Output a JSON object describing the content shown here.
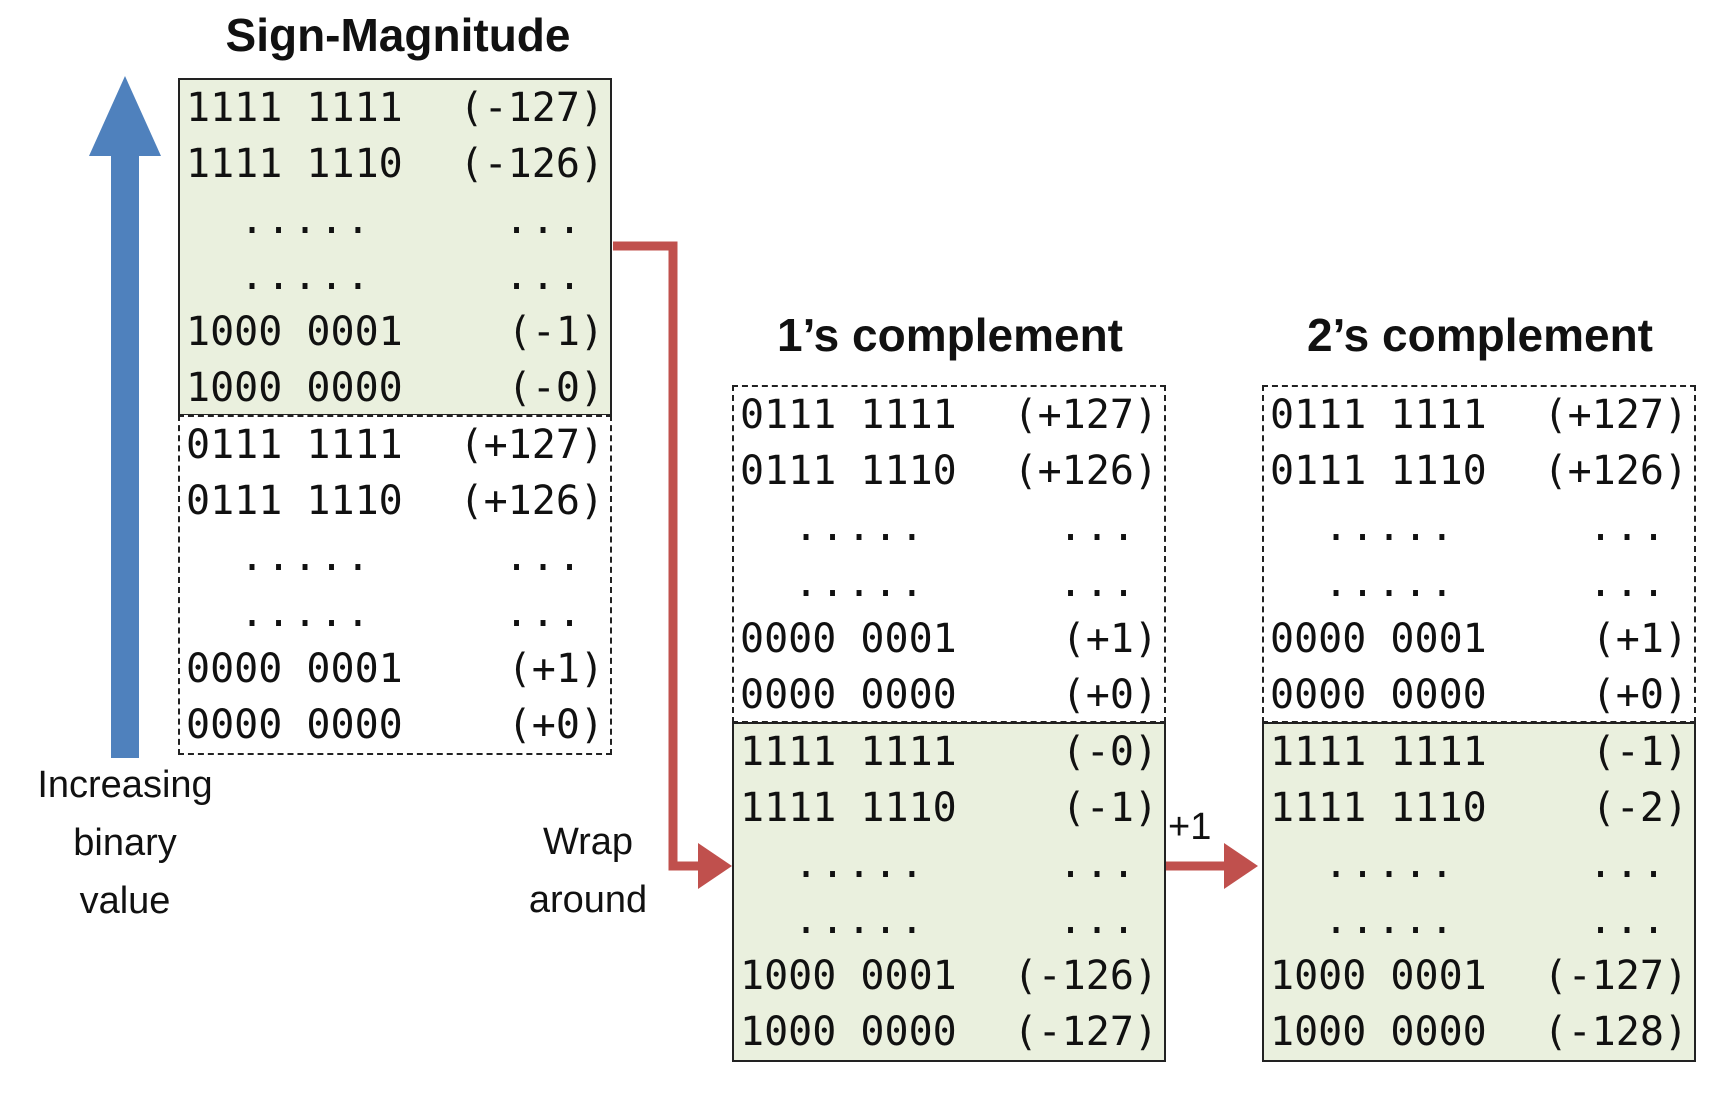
{
  "colors": {
    "blue_arrow": "#4f81bd",
    "red_arrow": "#c0504d",
    "negative_fill": "#eaf0de"
  },
  "sign_magnitude": {
    "title": "Sign-Magnitude",
    "negative_rows": [
      {
        "bits": "1111 1111",
        "value": "(-127)"
      },
      {
        "bits": "1111 1110",
        "value": "(-126)"
      },
      {
        "bits": ".....",
        "value": "..."
      },
      {
        "bits": ".....",
        "value": "..."
      },
      {
        "bits": "1000 0001",
        "value": "(-1)"
      },
      {
        "bits": "1000 0000",
        "value": "(-0)"
      }
    ],
    "positive_rows": [
      {
        "bits": "0111 1111",
        "value": "(+127)"
      },
      {
        "bits": "0111 1110",
        "value": "(+126)"
      },
      {
        "bits": ".....",
        "value": "..."
      },
      {
        "bits": ".....",
        "value": "..."
      },
      {
        "bits": "0000 0001",
        "value": "(+1)"
      },
      {
        "bits": "0000 0000",
        "value": "(+0)"
      }
    ]
  },
  "ones_complement": {
    "title": "1’s complement",
    "positive_rows": [
      {
        "bits": "0111 1111",
        "value": "(+127)"
      },
      {
        "bits": "0111 1110",
        "value": "(+126)"
      },
      {
        "bits": ".....",
        "value": "..."
      },
      {
        "bits": ".....",
        "value": "..."
      },
      {
        "bits": "0000 0001",
        "value": "(+1)"
      },
      {
        "bits": "0000 0000",
        "value": "(+0)"
      }
    ],
    "negative_rows": [
      {
        "bits": "1111 1111",
        "value": "(-0)"
      },
      {
        "bits": "1111 1110",
        "value": "(-1)"
      },
      {
        "bits": ".....",
        "value": "..."
      },
      {
        "bits": ".....",
        "value": "..."
      },
      {
        "bits": "1000 0001",
        "value": "(-126)"
      },
      {
        "bits": "1000 0000",
        "value": "(-127)"
      }
    ]
  },
  "twos_complement": {
    "title": "2’s complement",
    "positive_rows": [
      {
        "bits": "0111 1111",
        "value": "(+127)"
      },
      {
        "bits": "0111 1110",
        "value": "(+126)"
      },
      {
        "bits": ".....",
        "value": "..."
      },
      {
        "bits": ".....",
        "value": "..."
      },
      {
        "bits": "0000 0001",
        "value": "(+1)"
      },
      {
        "bits": "0000 0000",
        "value": "(+0)"
      }
    ],
    "negative_rows": [
      {
        "bits": "1111 1111",
        "value": "(-1)"
      },
      {
        "bits": "1111 1110",
        "value": "(-2)"
      },
      {
        "bits": ".....",
        "value": "..."
      },
      {
        "bits": ".....",
        "value": "..."
      },
      {
        "bits": "1000 0001",
        "value": "(-127)"
      },
      {
        "bits": "1000 0000",
        "value": "(-128)"
      }
    ]
  },
  "labels": {
    "increasing_line1": "Increasing",
    "increasing_line2": "binary",
    "increasing_line3": "value",
    "wrap_line1": "Wrap",
    "wrap_line2": "around",
    "plus_one": "+1"
  }
}
